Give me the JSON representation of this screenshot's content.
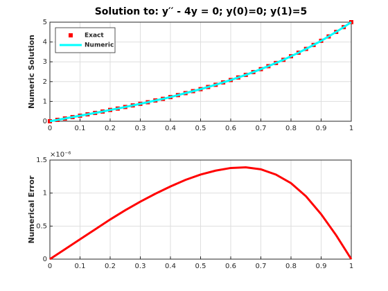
{
  "chart_data": [
    {
      "type": "line",
      "title": "Solution to: y′′ - 4y = 0;  y(0)=0; y(1)=5",
      "y_label": "Numeric Solution",
      "x": [
        0,
        0.025,
        0.05,
        0.075,
        0.1,
        0.125,
        0.15,
        0.175,
        0.2,
        0.225,
        0.25,
        0.275,
        0.3,
        0.325,
        0.35,
        0.375,
        0.4,
        0.425,
        0.45,
        0.475,
        0.5,
        0.525,
        0.55,
        0.575,
        0.6,
        0.625,
        0.65,
        0.675,
        0.7,
        0.725,
        0.75,
        0.775,
        0.8,
        0.825,
        0.85,
        0.875,
        0.9,
        0.925,
        0.95,
        0.975,
        1
      ],
      "series": [
        {
          "name": "Exact",
          "color": "#ff0000",
          "mode": "markers",
          "values": [
            0,
            0.07,
            0.14,
            0.21,
            0.28,
            0.35,
            0.42,
            0.49,
            0.57,
            0.64,
            0.72,
            0.8,
            0.88,
            0.96,
            1.05,
            1.13,
            1.22,
            1.32,
            1.42,
            1.52,
            1.62,
            1.73,
            1.84,
            1.96,
            2.08,
            2.21,
            2.34,
            2.48,
            2.63,
            2.78,
            2.94,
            3.1,
            3.28,
            3.46,
            3.65,
            3.85,
            4.06,
            4.28,
            4.51,
            4.75,
            5
          ]
        },
        {
          "name": "Numeric",
          "color": "#00ffff",
          "mode": "line",
          "values": [
            0,
            0.07,
            0.14,
            0.21,
            0.28,
            0.35,
            0.42,
            0.49,
            0.57,
            0.64,
            0.72,
            0.8,
            0.88,
            0.96,
            1.05,
            1.13,
            1.22,
            1.32,
            1.42,
            1.52,
            1.62,
            1.73,
            1.84,
            1.96,
            2.08,
            2.21,
            2.34,
            2.48,
            2.63,
            2.78,
            2.94,
            3.1,
            3.28,
            3.46,
            3.65,
            3.85,
            4.06,
            4.28,
            4.51,
            4.75,
            5
          ]
        }
      ],
      "xlim": [
        0,
        1
      ],
      "xticks": [
        0,
        0.1,
        0.2,
        0.3,
        0.4,
        0.5,
        0.6,
        0.7,
        0.8,
        0.9,
        1
      ],
      "ylim": [
        0,
        5
      ],
      "yticks": [
        0,
        1,
        2,
        3,
        4,
        5
      ],
      "grid": true,
      "legend": "northwest"
    },
    {
      "type": "line",
      "y_label": "Numerical Error",
      "y_exponent": "×10⁻⁶",
      "x": [
        0,
        0.05,
        0.1,
        0.15,
        0.2,
        0.25,
        0.3,
        0.35,
        0.4,
        0.45,
        0.5,
        0.55,
        0.6,
        0.65,
        0.7,
        0.75,
        0.8,
        0.85,
        0.9,
        0.95,
        1
      ],
      "series": [
        {
          "color": "#ff0000",
          "mode": "line",
          "values": [
            0,
            0.15,
            0.3,
            0.45,
            0.6,
            0.74,
            0.87,
            0.99,
            1.1,
            1.2,
            1.28,
            1.34,
            1.38,
            1.39,
            1.36,
            1.28,
            1.15,
            0.95,
            0.68,
            0.36,
            0
          ]
        }
      ],
      "xlim": [
        0,
        1
      ],
      "xticks": [
        0,
        0.1,
        0.2,
        0.3,
        0.4,
        0.5,
        0.6,
        0.7,
        0.8,
        0.9,
        1
      ],
      "ylim": [
        0,
        1.5
      ],
      "yticks": [
        0,
        0.5,
        1,
        1.5
      ],
      "grid": true
    }
  ]
}
